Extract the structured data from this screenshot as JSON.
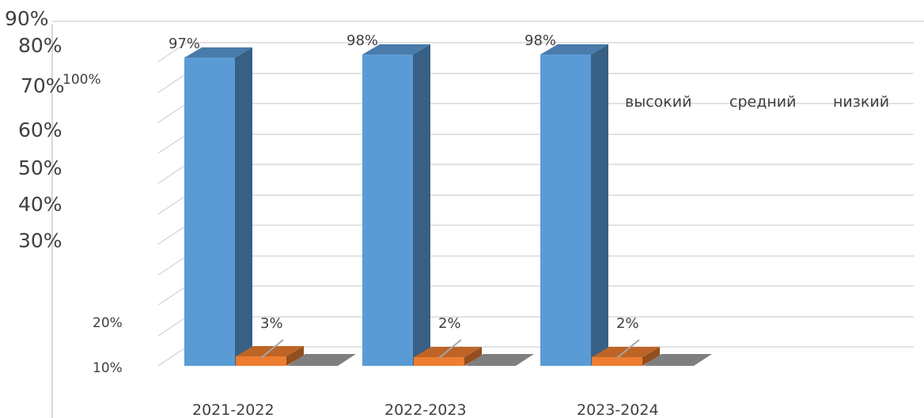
{
  "chart_data": {
    "type": "bar",
    "categories": [
      "2021-2022",
      "2022-2023",
      "2023-2024"
    ],
    "series": [
      {
        "name": "высокий",
        "values": [
          97,
          98,
          98
        ],
        "labels": [
          "97%",
          "98%",
          "98%"
        ],
        "color": "#5b9bd5"
      },
      {
        "name": "средний",
        "values": [
          3,
          2,
          2
        ],
        "labels": [
          "3%",
          "2%",
          "2%"
        ],
        "color": "#ed7d31"
      },
      {
        "name": "низкий",
        "values": [
          0,
          0,
          0
        ],
        "color": "#7f7f7f"
      }
    ],
    "y_tick_labels": {
      "large": [
        "90%",
        "80%",
        "70%",
        "60%",
        "50%",
        "40%",
        "30%"
      ],
      "small": [
        "100%",
        "20%",
        "10%"
      ]
    },
    "ylim": [
      0,
      100
    ],
    "grid": true,
    "legend_position": "top-right",
    "three_d": true
  }
}
